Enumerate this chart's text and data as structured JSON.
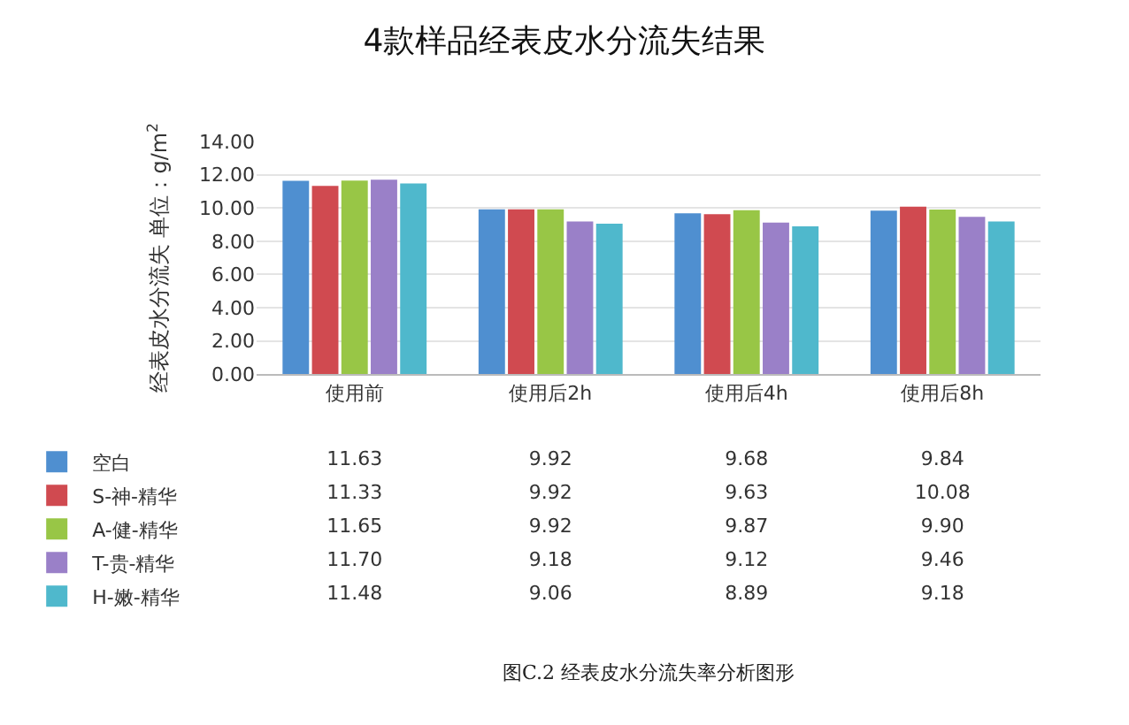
{
  "chart_data": {
    "type": "bar",
    "title": "4款样品经表皮水分流失结果",
    "ylabel": "经表皮水分流失 单位：g/m$^{2}$",
    "categories": [
      "使用前",
      "使用后2h",
      "使用后4h",
      "使用后8h"
    ],
    "series": [
      {
        "name": "空白",
        "color": "#4f8fd0",
        "values": [
          11.63,
          9.92,
          9.68,
          9.84
        ],
        "value_labels": [
          "11.63",
          "9.92",
          "9.68",
          "9.84"
        ]
      },
      {
        "name": "S-神-精华",
        "color": "#d04a50",
        "values": [
          11.33,
          9.92,
          9.63,
          10.08
        ],
        "value_labels": [
          "11.33",
          "9.92",
          "9.63",
          "10.08"
        ]
      },
      {
        "name": "A-健-精华",
        "color": "#98c646",
        "values": [
          11.65,
          9.92,
          9.87,
          9.9
        ],
        "value_labels": [
          "11.65",
          "9.92",
          "9.87",
          "9.90"
        ]
      },
      {
        "name": "T-贵-精华",
        "color": "#9a80c8",
        "values": [
          11.7,
          9.18,
          9.12,
          9.46
        ],
        "value_labels": [
          "11.70",
          "9.18",
          "9.12",
          "9.46"
        ]
      },
      {
        "name": "H-嫩-精华",
        "color": "#4fb8cc",
        "values": [
          11.48,
          9.06,
          8.89,
          9.18
        ],
        "value_labels": [
          "11.48",
          "9.06",
          "8.89",
          "9.18"
        ]
      }
    ],
    "ylim": [
      0,
      14
    ],
    "yticks": [
      {
        "value": 0,
        "label": "0.00"
      },
      {
        "value": 2,
        "label": "2.00"
      },
      {
        "value": 4,
        "label": "4.00"
      },
      {
        "value": 6,
        "label": "6.00"
      },
      {
        "value": 8,
        "label": "8.00"
      },
      {
        "value": 10,
        "label": "10.00"
      },
      {
        "value": 12,
        "label": "12.00"
      },
      {
        "value": 14,
        "label": "14.00"
      }
    ],
    "grid": "y",
    "legend": "bottom left",
    "annotations": [
      "图C.2 经表皮水分流失率分析图形"
    ]
  }
}
